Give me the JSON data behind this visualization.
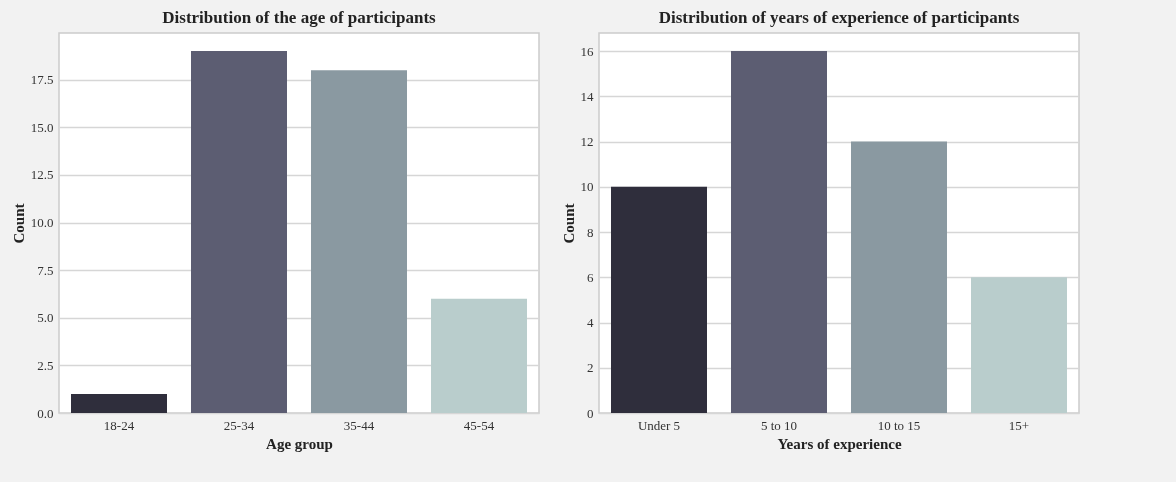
{
  "chart_data": [
    {
      "type": "bar",
      "title": "Distribution of the age of participants",
      "xlabel": "Age group",
      "ylabel": "Count",
      "categories": [
        "18-24",
        "25-34",
        "35-44",
        "45-54"
      ],
      "values": [
        1,
        19,
        18,
        6
      ],
      "colors": [
        "#2f2e3c",
        "#5c5d72",
        "#8a99a1",
        "#b9cdcc"
      ],
      "ylim": [
        0,
        19.95
      ],
      "yticks": [
        {
          "value": 0,
          "label": "0.0"
        },
        2.5,
        {
          "value": 5,
          "label": "5.0"
        },
        7.5,
        {
          "value": 10,
          "label": "10.0"
        },
        12.5,
        {
          "value": 15,
          "label": "15.0"
        },
        17.5
      ],
      "grid": "y"
    },
    {
      "type": "bar",
      "title": "Distribution of years of experience of participants",
      "xlabel": "Years of experience",
      "ylabel": "Count",
      "categories": [
        "Under 5",
        "5 to 10",
        "10 to 15",
        "15+"
      ],
      "values": [
        10,
        16,
        12,
        6
      ],
      "colors": [
        "#2f2e3c",
        "#5c5d72",
        "#8a99a1",
        "#b9cdcc"
      ],
      "ylim": [
        0,
        16.8
      ],
      "yticks": [
        0,
        2,
        4,
        6,
        8,
        10,
        12,
        14,
        16
      ],
      "grid": "y"
    }
  ]
}
